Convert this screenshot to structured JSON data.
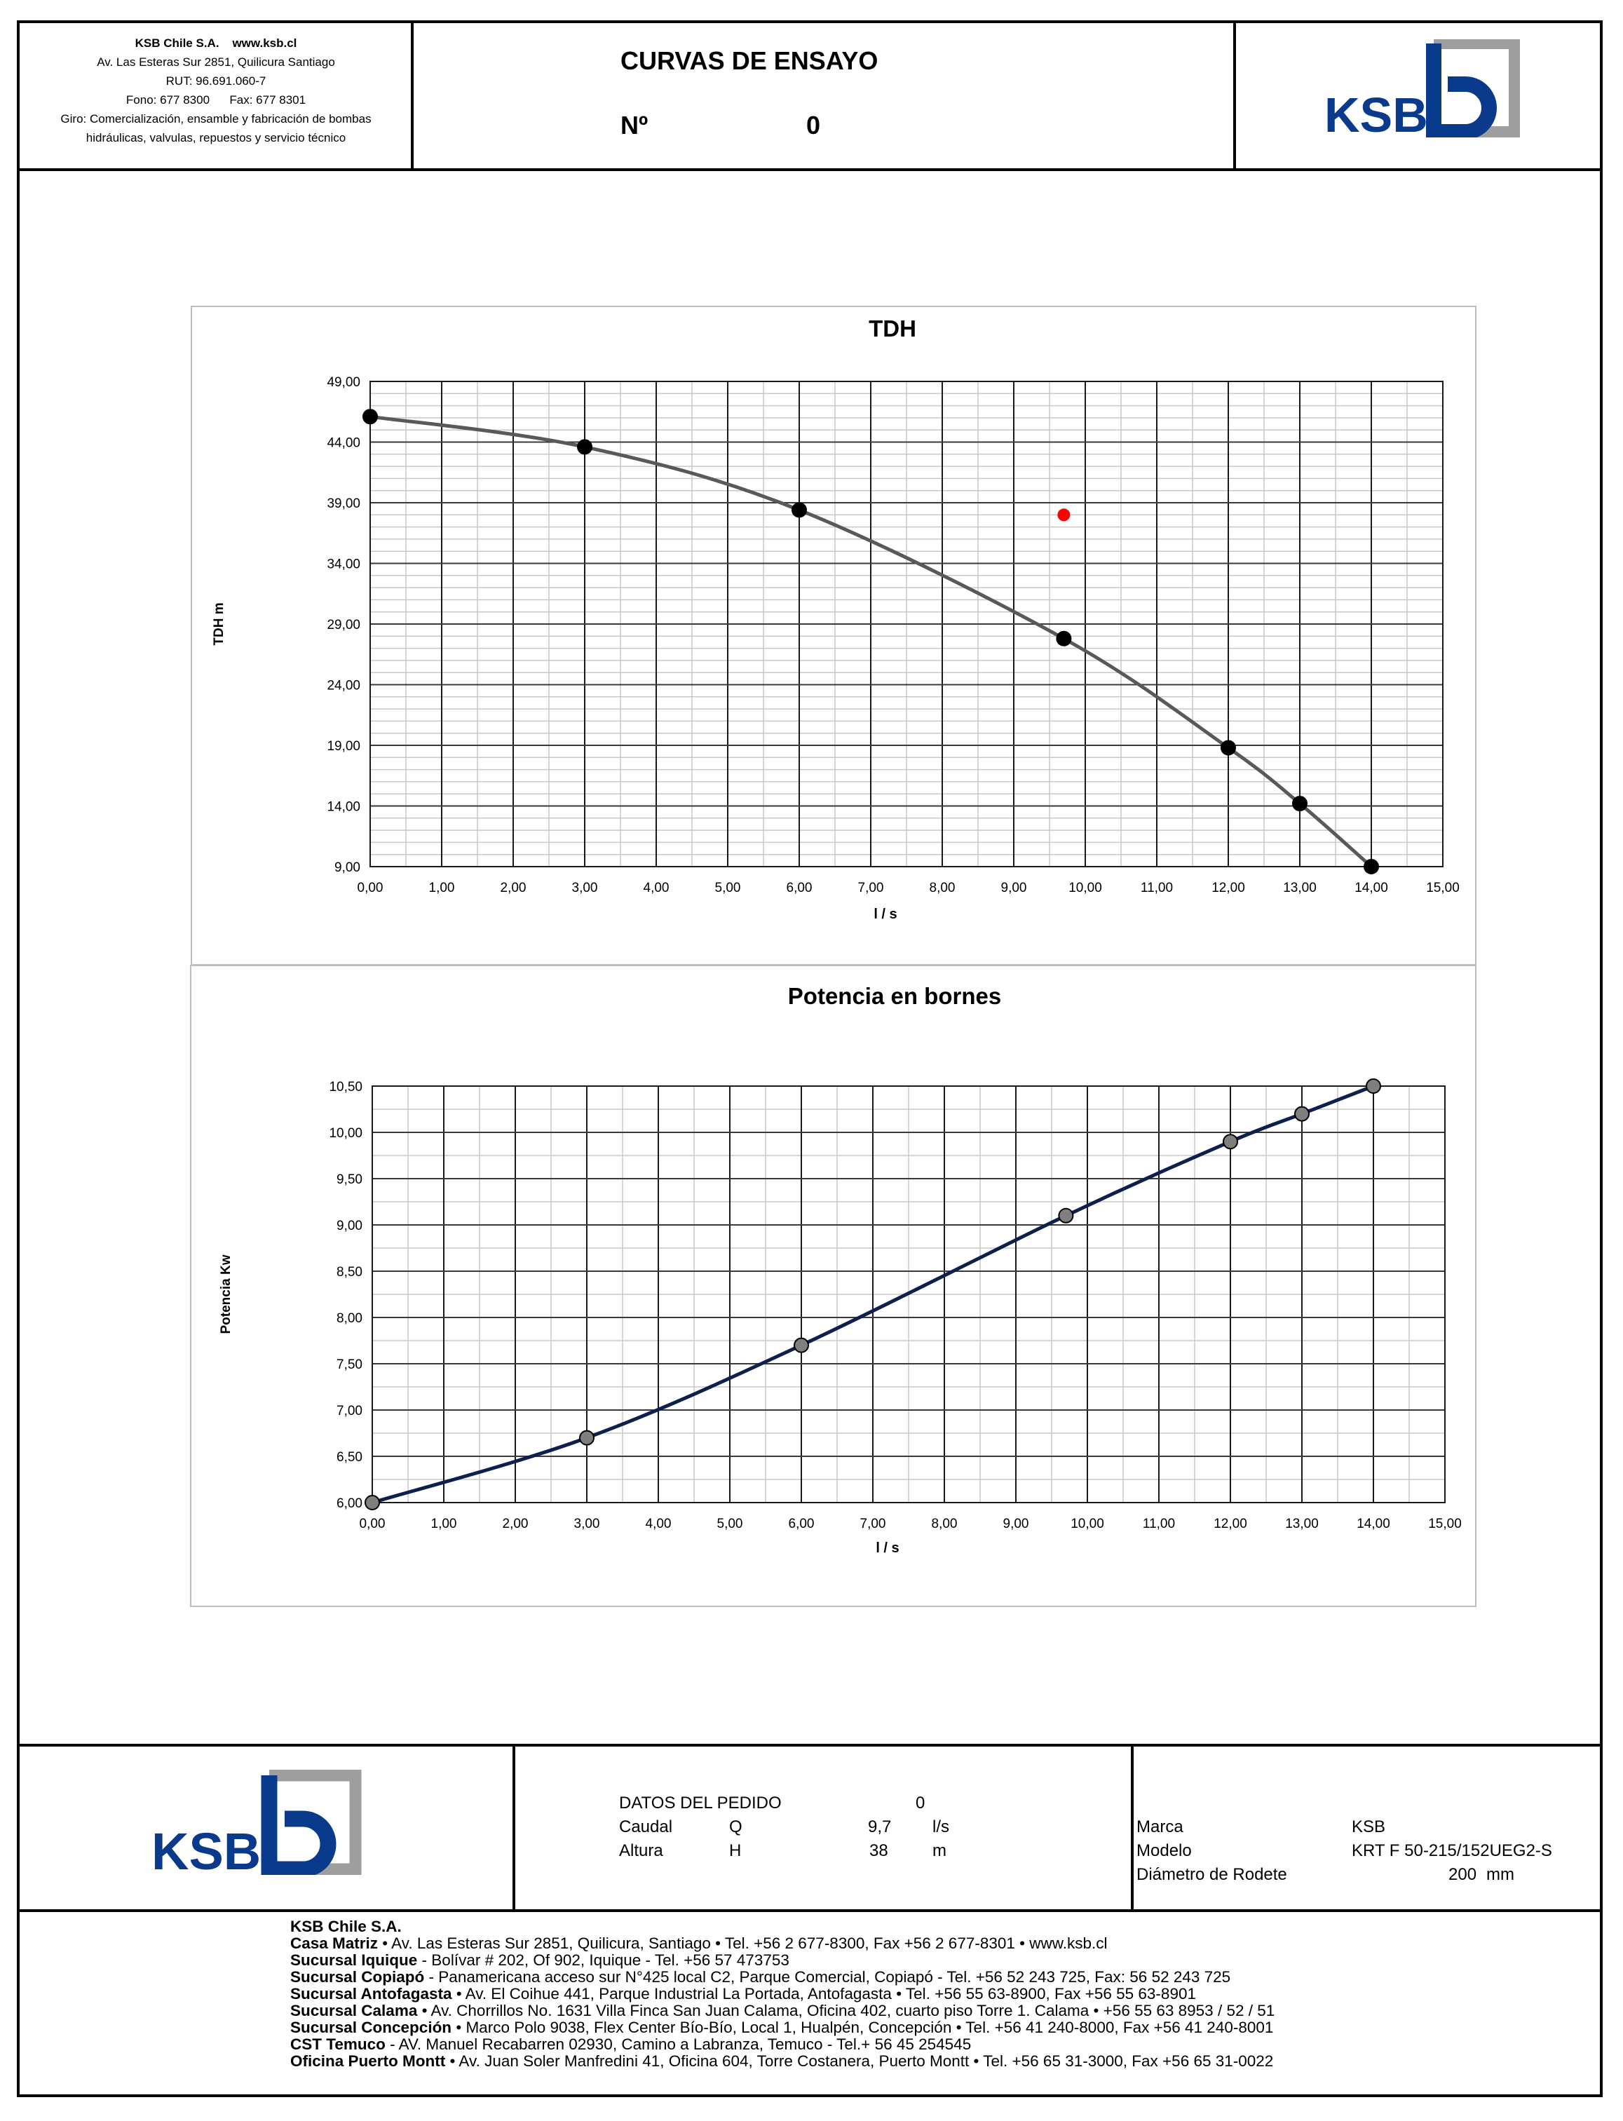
{
  "header": {
    "company": {
      "name": "KSB Chile S.A.",
      "web": "www.ksb.cl",
      "address": "Av. Las Esteras Sur 2851, Quilicura Santiago",
      "rut": "RUT: 96.691.060-7",
      "phone": "Fono: 677 8300",
      "fax": "Fax: 677 8301",
      "giro_line1": "Giro: Comercialización, ensamble y fabricación de bombas",
      "giro_line2": "hidráulicas, valvulas, repuestos y servicio técnico"
    },
    "title": "CURVAS DE ENSAYO",
    "number_label": "Nº",
    "number_value": "0",
    "logo_text": "KSB"
  },
  "colors": {
    "ksb_blue": "#0a3a8c",
    "ksb_gray": "#9e9e9e",
    "tdh_line": "#595959",
    "power_line": "#0d1f4d",
    "marker_black": "#000000",
    "marker_gray": "#7f7f7f",
    "duty_point": "#ff0000"
  },
  "chart_data": [
    {
      "type": "line",
      "title": "TDH",
      "xlabel": "l / s",
      "ylabel": "TDH m",
      "xlim": [
        0,
        15
      ],
      "ylim": [
        9,
        49
      ],
      "xticks": [
        "0,00",
        "1,00",
        "2,00",
        "3,00",
        "4,00",
        "5,00",
        "6,00",
        "7,00",
        "8,00",
        "9,00",
        "10,00",
        "11,00",
        "12,00",
        "13,00",
        "14,00",
        "15,00"
      ],
      "yticks": [
        "9,00",
        "14,00",
        "19,00",
        "24,00",
        "29,00",
        "34,00",
        "39,00",
        "44,00",
        "49,00"
      ],
      "grid": true,
      "series": [
        {
          "x": [
            0,
            3,
            6,
            9.7,
            12,
            13,
            14
          ],
          "y": [
            46.1,
            43.6,
            38.4,
            27.8,
            18.8,
            14.2,
            9.0
          ]
        }
      ],
      "duty_point": {
        "x": 9.7,
        "y": 38
      }
    },
    {
      "type": "line",
      "title": "Potencia en bornes",
      "xlabel": "l / s",
      "ylabel": "Potencia Kw",
      "xlim": [
        0,
        15
      ],
      "ylim": [
        6,
        10.5
      ],
      "xticks": [
        "0,00",
        "1,00",
        "2,00",
        "3,00",
        "4,00",
        "5,00",
        "6,00",
        "7,00",
        "8,00",
        "9,00",
        "10,00",
        "11,00",
        "12,00",
        "13,00",
        "14,00",
        "15,00"
      ],
      "yticks": [
        "6,00",
        "6,50",
        "7,00",
        "7,50",
        "8,00",
        "8,50",
        "9,00",
        "9,50",
        "10,00",
        "10,50"
      ],
      "grid": true,
      "series": [
        {
          "x": [
            0,
            3,
            6,
            9.7,
            12,
            13,
            14
          ],
          "y": [
            6.0,
            6.7,
            7.7,
            9.1,
            9.9,
            10.2,
            10.5
          ]
        }
      ]
    }
  ],
  "order": {
    "heading": "DATOS DEL PEDIDO",
    "heading_value": "0",
    "flow_label": "Caudal",
    "flow_symbol": "Q",
    "flow_value": "9,7",
    "flow_unit": "l/s",
    "head_label": "Altura",
    "head_symbol": "H",
    "head_value": "38",
    "head_unit": "m"
  },
  "pump": {
    "brand_label": "Marca",
    "brand_value": "KSB",
    "model_label": "Modelo",
    "model_value": "KRT F 50-215/152UEG2-S",
    "impeller_label": "Diámetro de Rodete",
    "impeller_value": "200",
    "impeller_unit": "mm"
  },
  "footer": [
    {
      "name": "KSB Chile  S.A.",
      "text": ""
    },
    {
      "name": "Casa Matriz",
      "text": " • Av. Las Esteras Sur 2851, Quilicura, Santiago • Tel. +56 2 677-8300, Fax +56 2 677-8301 • www.ksb.cl"
    },
    {
      "name": "Sucursal Iquique",
      "text": "  - Bolívar # 202, Of 902, Iquique - Tel. +56 57 473753"
    },
    {
      "name": "Sucursal Copiapó",
      "text": " - Panamericana acceso sur N°425 local C2, Parque Comercial, Copiapó - Tel. +56 52 243 725, Fax: 56 52 243 725"
    },
    {
      "name": "Sucursal Antofagasta",
      "text": " • Av. El Coihue 441, Parque Industrial La Portada, Antofagasta • Tel. +56 55 63-8900, Fax +56 55 63-8901"
    },
    {
      "name": "Sucursal Calama",
      "text": " • Av. Chorrillos No. 1631 Villa Finca San Juan Calama, Oficina 402, cuarto piso Torre 1. Calama • +56 55 63 8953 / 52 / 51"
    },
    {
      "name": "Sucursal Concepción",
      "text": "  • Marco Polo 9038, Flex Center Bío-Bío, Local 1, Hualpén, Concepción • Tel. +56 41 240-8000, Fax +56 41 240-8001"
    },
    {
      "name": "CST Temuco",
      "text": " - AV. Manuel Recabarren 02930, Camino a Labranza, Temuco - Tel.+ 56 45 254545"
    },
    {
      "name": "Oficina Puerto Montt",
      "text": "  • Av. Juan Soler Manfredini 41, Oficina 604, Torre Costanera, Puerto Montt • Tel. +56 65 31-3000, Fax +56 65 31-0022"
    }
  ]
}
